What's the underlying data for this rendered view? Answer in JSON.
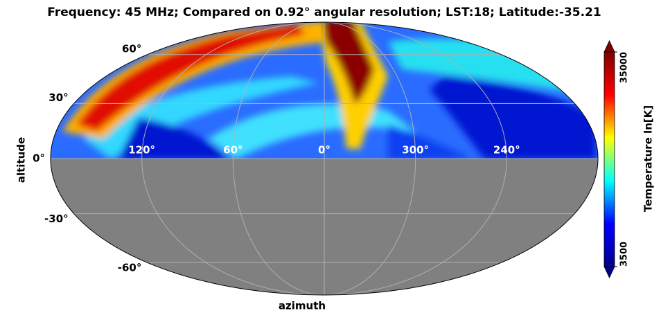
{
  "chart_data": {
    "type": "skymap",
    "projection": "mollweide",
    "title": "Frequency: 45 MHz; Compared on 0.92° angular resolution; LST:18; Latitude:-35.21",
    "xlabel": "azimuth",
    "ylabel": "altitude",
    "xticks": [
      {
        "value": 120,
        "label": "120°"
      },
      {
        "value": 60,
        "label": "60°"
      },
      {
        "value": 0,
        "label": "0°"
      },
      {
        "value": 300,
        "label": "300°"
      },
      {
        "value": 240,
        "label": "240°"
      }
    ],
    "yticks": [
      {
        "value": 60,
        "label": "60°"
      },
      {
        "value": 30,
        "label": "30°"
      },
      {
        "value": 0,
        "label": "0°"
      },
      {
        "value": -30,
        "label": "-30°"
      },
      {
        "value": -60,
        "label": "-60°"
      }
    ],
    "grid": true,
    "colorbar": {
      "label": "Temperature ln[K]",
      "scale": "log",
      "lim": [
        3500,
        35000
      ],
      "ticks": [
        3500,
        35000
      ],
      "cmap": [
        "#00008f",
        "#0000ff",
        "#00ffff",
        "#ffff00",
        "#ff0000",
        "#800000"
      ]
    }
  }
}
